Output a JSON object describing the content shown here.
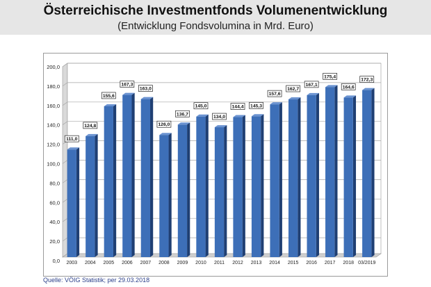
{
  "header": {
    "title": "Österreichische Investmentfonds Volumenentwicklung",
    "subtitle": "(Entwicklung Fondsvolumina in Mrd. Euro)"
  },
  "source": "Quelle: VÖIG Statistik; per 29.03.2018",
  "colors": {
    "bar": "#3d6fb8",
    "bar_dark": "#2b5290",
    "bar_side": "#1f3f73",
    "header_bg": "#e6e6e6"
  },
  "chart_data": {
    "type": "bar",
    "categories": [
      "2003",
      "2004",
      "2005",
      "2006",
      "2007",
      "2008",
      "2009",
      "2010",
      "2011",
      "2012",
      "2013",
      "2014",
      "2015",
      "2016",
      "2017",
      "2018",
      "03/2019"
    ],
    "values": [
      111.0,
      124.8,
      155.6,
      167.3,
      163.0,
      126.0,
      136.7,
      145.0,
      134.0,
      144.4,
      145.3,
      157.6,
      162.7,
      167.1,
      175.4,
      164.6,
      172.3
    ],
    "value_labels": [
      "111,0",
      "124,8",
      "155,6",
      "167,3",
      "163,0",
      "126,0",
      "136,7",
      "145,0",
      "134,0",
      "144,4",
      "145,3",
      "157,6",
      "162,7",
      "167,1",
      "175,4",
      "164,6",
      "172,3"
    ],
    "ylim": [
      0,
      200
    ],
    "yticks": [
      "0,0",
      "20,0",
      "40,0",
      "60,0",
      "80,0",
      "100,0",
      "120,0",
      "140,0",
      "160,0",
      "180,0",
      "200,0"
    ],
    "grid": true,
    "legend": "none"
  }
}
